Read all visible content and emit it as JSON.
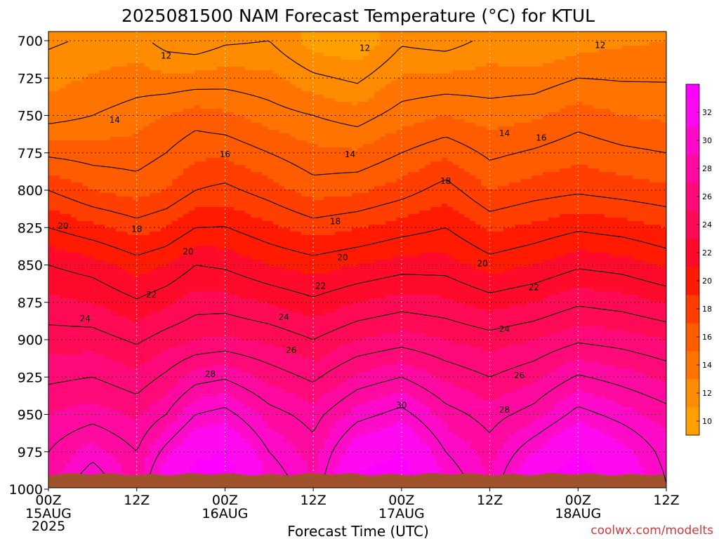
{
  "chart_data": {
    "type": "heatmap",
    "title": "2025081500 NAM Forecast Temperature (°C) for KTUL",
    "xlabel": "Forecast Time (UTC)",
    "ylabel": "",
    "credit": "coolwx.com/modelts",
    "x_ticks": [
      {
        "hour": 0,
        "label": "00Z",
        "sub": "15AUG",
        "sub2": "2025"
      },
      {
        "hour": 12,
        "label": "12Z",
        "sub": "",
        "sub2": ""
      },
      {
        "hour": 24,
        "label": "00Z",
        "sub": "16AUG",
        "sub2": ""
      },
      {
        "hour": 36,
        "label": "12Z",
        "sub": "",
        "sub2": ""
      },
      {
        "hour": 48,
        "label": "00Z",
        "sub": "17AUG",
        "sub2": ""
      },
      {
        "hour": 60,
        "label": "12Z",
        "sub": "",
        "sub2": ""
      },
      {
        "hour": 72,
        "label": "00Z",
        "sub": "18AUG",
        "sub2": ""
      },
      {
        "hour": 84,
        "label": "12Z",
        "sub": "",
        "sub2": ""
      }
    ],
    "xlim": [
      0,
      84
    ],
    "y_ticks": [
      700,
      725,
      750,
      775,
      800,
      825,
      850,
      875,
      900,
      925,
      950,
      975,
      1000
    ],
    "ylim": [
      700,
      1000
    ],
    "y_axis": "pressure (hPa), increasing downward",
    "colorbar": {
      "ticks": [
        10,
        12,
        14,
        16,
        18,
        20,
        22,
        24,
        26,
        28,
        30,
        32
      ],
      "range": [
        9,
        34
      ],
      "colors": [
        "#ff9f00",
        "#ff8c00",
        "#ff7400",
        "#ff5c00",
        "#ff3e00",
        "#ff1a00",
        "#ff0a2a",
        "#ff0a55",
        "#ff0a78",
        "#ff0aa0",
        "#ff0ac8",
        "#ff0af0",
        "#ff00ff"
      ]
    },
    "contour_levels": [
      12,
      14,
      16,
      18,
      20,
      22,
      24,
      26,
      28,
      30
    ],
    "pressure_levels": [
      700,
      750,
      800,
      850,
      900,
      950,
      975,
      995
    ],
    "series": [
      {
        "hour": 0,
        "temps": [
          11.8,
          13.5,
          18.0,
          22.0,
          24.5,
          27.0,
          28.0,
          28.5
        ]
      },
      {
        "hour": 6,
        "temps": [
          12.2,
          14.0,
          17.0,
          21.5,
          24.5,
          27.5,
          29.5,
          31.0
        ]
      },
      {
        "hour": 12,
        "temps": [
          12.4,
          14.5,
          16.5,
          20.5,
          23.8,
          26.8,
          28.0,
          28.5
        ]
      },
      {
        "hour": 16,
        "temps": [
          11.5,
          15.0,
          17.0,
          21.0,
          24.5,
          28.0,
          30.5,
          32.5
        ]
      },
      {
        "hour": 20,
        "temps": [
          11.2,
          15.5,
          18.0,
          22.0,
          25.0,
          30.0,
          32.5,
          34.0
        ]
      },
      {
        "hour": 24,
        "temps": [
          11.8,
          15.2,
          18.3,
          21.8,
          25.2,
          30.5,
          33.0,
          34.0
        ]
      },
      {
        "hour": 30,
        "temps": [
          12.0,
          14.5,
          17.5,
          21.0,
          24.8,
          28.5,
          30.0,
          31.0
        ]
      },
      {
        "hour": 36,
        "temps": [
          10.5,
          14.0,
          16.5,
          20.5,
          24.0,
          27.5,
          28.5,
          29.0
        ]
      },
      {
        "hour": 42,
        "temps": [
          10.0,
          13.5,
          16.8,
          21.0,
          25.0,
          29.5,
          32.0,
          33.5
        ]
      },
      {
        "hour": 48,
        "temps": [
          11.8,
          14.5,
          17.5,
          21.5,
          25.5,
          30.5,
          33.0,
          34.0
        ]
      },
      {
        "hour": 54,
        "temps": [
          11.5,
          15.0,
          18.5,
          21.5,
          25.0,
          28.5,
          30.0,
          31.0
        ]
      },
      {
        "hour": 60,
        "temps": [
          12.3,
          14.5,
          17.0,
          20.5,
          24.5,
          27.5,
          28.5,
          29.0
        ]
      },
      {
        "hour": 66,
        "temps": [
          12.0,
          14.8,
          17.5,
          21.0,
          25.0,
          28.5,
          31.0,
          33.0
        ]
      },
      {
        "hour": 72,
        "temps": [
          12.5,
          15.5,
          17.8,
          21.8,
          25.8,
          30.5,
          33.0,
          34.0
        ]
      },
      {
        "hour": 78,
        "temps": [
          12.8,
          15.0,
          17.5,
          21.5,
          25.5,
          29.5,
          31.5,
          32.5
        ]
      },
      {
        "hour": 84,
        "temps": [
          13.0,
          14.8,
          17.2,
          20.8,
          25.0,
          28.5,
          29.5,
          30.0
        ]
      }
    ],
    "contour_labels": [
      {
        "text": "12",
        "hour": 16,
        "pressure": 710
      },
      {
        "text": "12",
        "hour": 43,
        "pressure": 705
      },
      {
        "text": "12",
        "hour": 75,
        "pressure": 703
      },
      {
        "text": "14",
        "hour": 9,
        "pressure": 753
      },
      {
        "text": "14",
        "hour": 41,
        "pressure": 776
      },
      {
        "text": "14",
        "hour": 62,
        "pressure": 762
      },
      {
        "text": "16",
        "hour": 24,
        "pressure": 776
      },
      {
        "text": "16",
        "hour": 67,
        "pressure": 765
      },
      {
        "text": "18",
        "hour": 12,
        "pressure": 826
      },
      {
        "text": "18",
        "hour": 39,
        "pressure": 821
      },
      {
        "text": "18",
        "hour": 54,
        "pressure": 794
      },
      {
        "text": "20",
        "hour": 2,
        "pressure": 824
      },
      {
        "text": "20",
        "hour": 19,
        "pressure": 841
      },
      {
        "text": "20",
        "hour": 40,
        "pressure": 845
      },
      {
        "text": "20",
        "hour": 59,
        "pressure": 849
      },
      {
        "text": "22",
        "hour": 14,
        "pressure": 870
      },
      {
        "text": "22",
        "hour": 37,
        "pressure": 864
      },
      {
        "text": "22",
        "hour": 66,
        "pressure": 865
      },
      {
        "text": "24",
        "hour": 5,
        "pressure": 886
      },
      {
        "text": "24",
        "hour": 32,
        "pressure": 885
      },
      {
        "text": "24",
        "hour": 62,
        "pressure": 893
      },
      {
        "text": "26",
        "hour": 33,
        "pressure": 907
      },
      {
        "text": "26",
        "hour": 64,
        "pressure": 924
      },
      {
        "text": "28",
        "hour": 22,
        "pressure": 923
      },
      {
        "text": "28",
        "hour": 62,
        "pressure": 947
      },
      {
        "text": "30",
        "hour": 48,
        "pressure": 944
      }
    ]
  }
}
